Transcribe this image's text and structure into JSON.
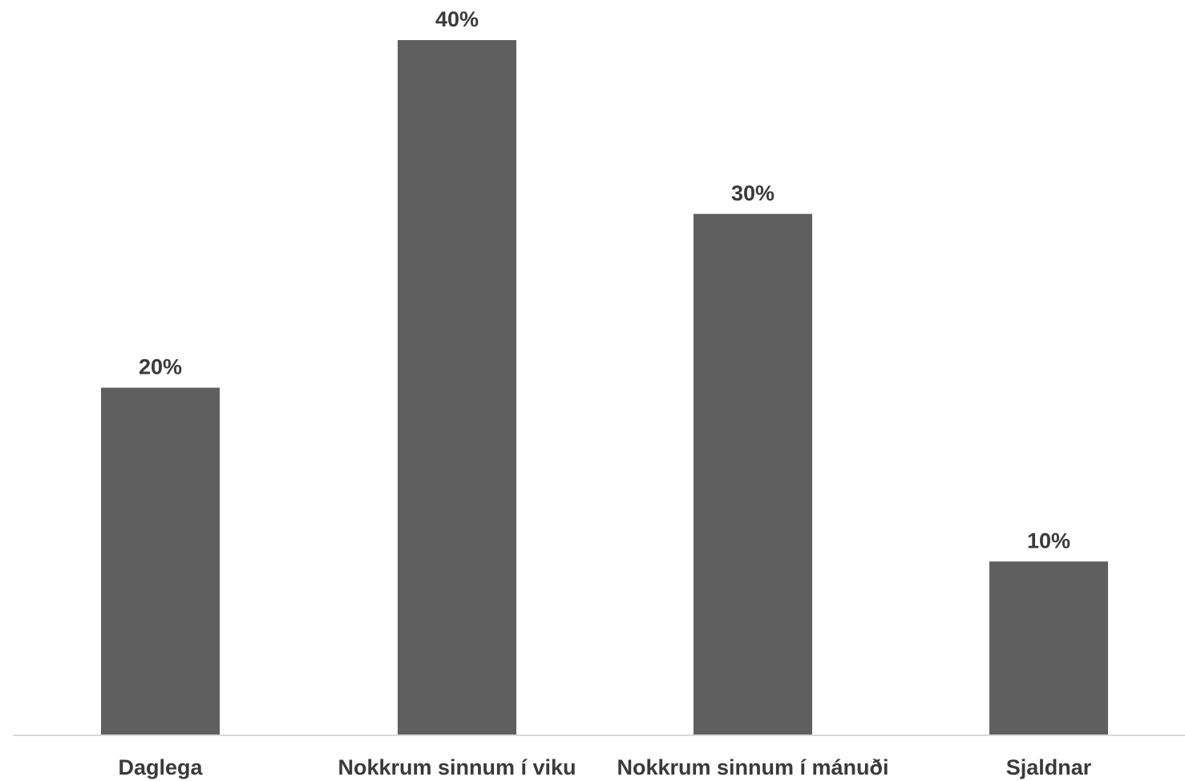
{
  "chart_data": {
    "type": "bar",
    "categories": [
      "Daglega",
      "Nokkrum sinnum í viku",
      "Nokkrum sinnum í mánuði",
      "Sjaldnar"
    ],
    "values": [
      20,
      40,
      30,
      10
    ],
    "data_labels": [
      "20%",
      "40%",
      "30%",
      "10%"
    ],
    "title": "",
    "xlabel": "",
    "ylabel": "",
    "ylim": [
      0,
      40
    ],
    "grid": false,
    "legend": "none",
    "bar_color": "#5f5f5f",
    "axis_color": "#d9d9d9",
    "text_color": "#3a3a3a"
  }
}
